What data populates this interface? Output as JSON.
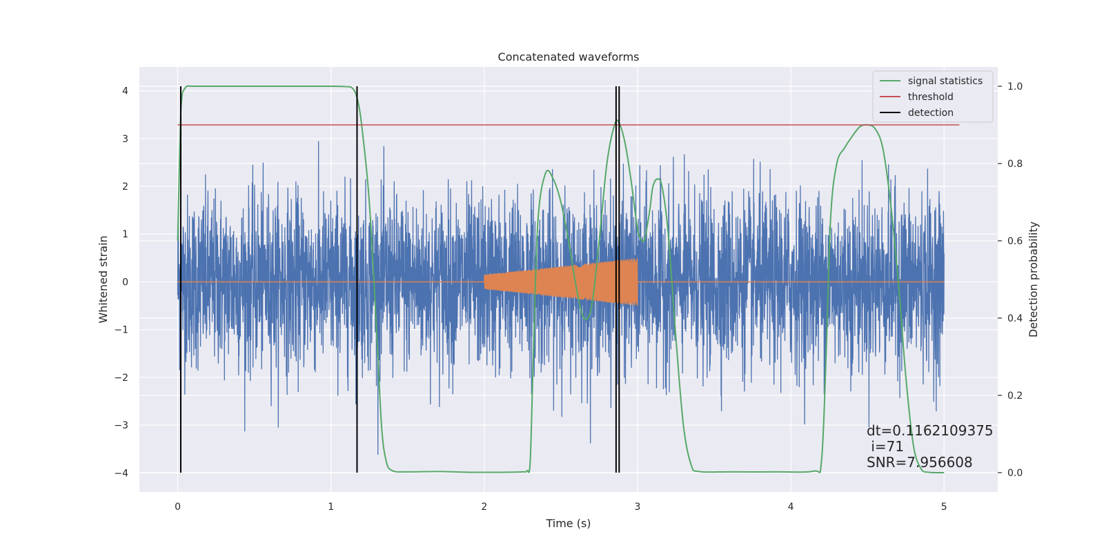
{
  "chart_data": {
    "type": "line",
    "title": "Concatenated waveforms",
    "xlabel": "Time (s)",
    "ylabel": "Whitened strain",
    "ylabel_right": "Detection probability",
    "xlim": [
      -0.25,
      5.35
    ],
    "ylim": [
      -4.4,
      4.5
    ],
    "ylim_right": [
      -0.05,
      1.05
    ],
    "xticks": [
      0,
      1,
      2,
      3,
      4,
      5
    ],
    "yticks": [
      -4,
      -3,
      -2,
      -1,
      0,
      1,
      2,
      3,
      4
    ],
    "yticks_right": [
      0.0,
      0.2,
      0.4,
      0.6,
      0.8,
      1.0
    ],
    "xtick_labels": [
      "0",
      "1",
      "2",
      "3",
      "4",
      "5"
    ],
    "ytick_labels": [
      "−4",
      "−3",
      "−2",
      "−1",
      "0",
      "1",
      "2",
      "3",
      "4"
    ],
    "ytick_right_labels": [
      "0.0",
      "0.2",
      "0.4",
      "0.6",
      "0.8",
      "1.0"
    ],
    "grid": true,
    "legend_position": "top-right",
    "colors": {
      "strain": "#4c72b0",
      "injection": "#dd8452",
      "signal_statistics": "#55a868",
      "threshold": "#c44e52",
      "detection": "#000000",
      "plot_background": "#eaeaf2",
      "grid": "#ffffff"
    },
    "series": [
      {
        "name": "signal statistics",
        "axis": "right",
        "x": [
          0.0,
          0.01,
          0.02,
          0.03,
          0.04,
          0.06,
          0.1,
          0.2,
          0.5,
          0.8,
          1.0,
          1.1,
          1.14,
          1.17,
          1.2,
          1.25,
          1.3,
          1.33,
          1.36,
          1.4,
          1.5,
          1.7,
          1.9,
          2.1,
          2.25,
          2.28,
          2.3,
          2.32,
          2.35,
          2.4,
          2.45,
          2.5,
          2.55,
          2.6,
          2.65,
          2.7,
          2.75,
          2.8,
          2.85,
          2.88,
          2.92,
          2.96,
          3.0,
          3.03,
          3.05,
          3.08,
          3.1,
          3.13,
          3.16,
          3.2,
          3.25,
          3.3,
          3.35,
          3.4,
          3.6,
          3.9,
          4.15,
          4.2,
          4.23,
          4.26,
          4.3,
          4.35,
          4.4,
          4.45,
          4.5,
          4.55,
          4.6,
          4.65,
          4.7,
          4.75,
          4.8,
          4.85,
          4.9,
          5.0
        ],
        "values": [
          0.6,
          0.78,
          0.93,
          0.98,
          0.99,
          1.0,
          1.0,
          1.0,
          1.0,
          1.0,
          1.0,
          0.999,
          0.995,
          0.97,
          0.9,
          0.7,
          0.35,
          0.12,
          0.03,
          0.005,
          0.002,
          0.003,
          0.001,
          0.001,
          0.002,
          0.005,
          0.03,
          0.3,
          0.65,
          0.775,
          0.76,
          0.7,
          0.6,
          0.48,
          0.4,
          0.43,
          0.6,
          0.8,
          0.9,
          0.905,
          0.85,
          0.75,
          0.63,
          0.6,
          0.61,
          0.68,
          0.74,
          0.76,
          0.74,
          0.62,
          0.35,
          0.12,
          0.02,
          0.003,
          0.002,
          0.002,
          0.004,
          0.03,
          0.3,
          0.66,
          0.8,
          0.84,
          0.87,
          0.895,
          0.9,
          0.89,
          0.84,
          0.7,
          0.5,
          0.25,
          0.07,
          0.01,
          0.001,
          0.0
        ]
      },
      {
        "name": "threshold",
        "axis": "right",
        "x": [
          0.0,
          5.1
        ],
        "values": [
          0.9,
          0.9
        ]
      },
      {
        "name": "detection",
        "axis": "right",
        "x": [
          0.02,
          1.17,
          2.86,
          2.88
        ],
        "values": [
          1.0,
          1.0,
          1.0,
          1.0
        ]
      }
    ],
    "strain": {
      "x_range": [
        0,
        5
      ],
      "noise_std": 0.9,
      "peak_max": 4.1,
      "peak_min": -4.0
    },
    "injection": {
      "x_range": [
        2.0,
        3.0
      ],
      "amplitude_start": 0.15,
      "amplitude_end": 0.5
    },
    "annotation": {
      "dt": "dt=0.1162109375",
      "i": " i=71",
      "snr": "SNR=7.956608"
    }
  }
}
